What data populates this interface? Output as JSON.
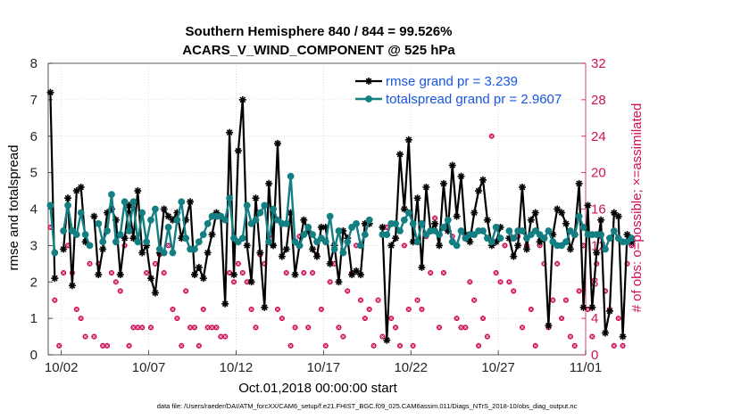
{
  "chart_data": {
    "type": "line",
    "title": "Southern Hemisphere 840 / 844 = 99.526%",
    "subtitle": "ACARS_V_WIND_COMPONENT @ 525 hPa",
    "xlabel": "Oct.01,2018 00:00:00 start",
    "ylabel_left": "rmse and totalspread",
    "ylabel_right": "# of obs: o=possible; ×=assimilated",
    "footnote": "data file: /Users/raeder/DAI/ATM_forcXX/CAM6_setup/f.e21.FHIST_BGC.f09_025.CAM6assim.011/Diags_NTrS_2018-10/obs_diag_output.nc",
    "xlim": [
      0.75,
      31.5
    ],
    "ylim_left": [
      0,
      8
    ],
    "ylim_right": [
      0,
      32
    ],
    "x_ticks": [
      1.5,
      6.5,
      11.5,
      16.5,
      21.5,
      26.5,
      31.5
    ],
    "x_tick_labels": [
      "10/02",
      "10/07",
      "10/12",
      "10/17",
      "10/22",
      "10/27",
      "11/01"
    ],
    "y_ticks_left": [
      0,
      1,
      2,
      3,
      4,
      5,
      6,
      7,
      8
    ],
    "y_ticks_right": [
      0,
      4,
      8,
      12,
      16,
      20,
      24,
      28,
      32
    ],
    "x_start": 0.875,
    "x_step": 0.25,
    "series": [
      {
        "name": "rmse grand pr = 3.239",
        "color": "#000000",
        "marker": "star",
        "values": [
          7.2,
          2.1,
          null,
          2.9,
          4.3,
          1.9,
          4.5,
          4.6,
          3.1,
          null,
          3.8,
          2.2,
          2.9,
          3.9,
          4.0,
          3.7,
          2.2,
          3.2,
          4.1,
          3.2,
          4.5,
          2.8,
          3.0,
          2.1,
          1.7,
          2.8,
          4.0,
          3.8,
          3.7,
          3.9,
          3.2,
          3.7,
          4.2,
          2.2,
          2.4,
          2.1,
          2.8,
          3.3,
          3.9,
          3.8,
          1.4,
          6.1,
          2.2,
          5.6,
          7.0,
          3.0,
          2.0,
          4.3,
          2.8,
          1.3,
          4.7,
          3.0,
          5.8,
          2.7,
          2.9,
          3.9,
          2.2,
          3.0,
          3.7,
          3.4,
          2.9,
          2.7,
          3.5,
          3.5,
          2.5,
          3.0,
          2.0,
          3.4,
          3.2,
          2.2,
          2.3,
          2.2,
          3.6,
          3.6,
          null,
          null,
          3.5,
          0.4,
          3.0,
          3.2,
          5.5,
          4.0,
          5.9,
          3.1,
          4.3,
          2.4,
          4.6,
          3.4,
          3.6,
          3.0,
          4.7,
          3.4,
          5.2,
          3.8,
          4.9,
          3.3,
          3.1,
          3.9,
          4.5,
          4.8,
          3.7,
          3.0,
          3.1,
          3.5,
          null,
          3.2,
          2.7,
          3.0,
          4.6,
          2.9,
          3.7,
          3.9,
          3.1,
          3.2,
          0.8,
          3.3,
          4.0,
          3.9,
          3.6,
          2.9,
          3.3,
          4.7,
          1.3,
          4.1,
          1.3,
          2.8,
          3.7,
          0.6,
          1.2,
          3.9,
          3.8,
          0.5,
          3.3,
          3.1
        ]
      },
      {
        "name": "totalspread grand pr = 2.9607",
        "color": "#137f83",
        "marker": "circle",
        "values": [
          4.1,
          2.8,
          null,
          3.4,
          4.1,
          3.4,
          3.3,
          3.9,
          3.3,
          3.0,
          null,
          3.6,
          3.1,
          3.4,
          4.4,
          3.1,
          3.3,
          4.2,
          3.4,
          4.2,
          3.1,
          3.9,
          3.1,
          3.7,
          4.0,
          2.9,
          2.8,
          3.5,
          2.8,
          3.7,
          4.2,
          3.2,
          2.9,
          2.9,
          3.1,
          3.3,
          3.6,
          3.8,
          3.8,
          3.8,
          3.7,
          4.3,
          3.2,
          3.1,
          3.2,
          4.1,
          3.6,
          3.7,
          3.9,
          4.1,
          3.1,
          4.0,
          3.7,
          3.6,
          3.6,
          4.9,
          3.1,
          3.0,
          3.3,
          3.5,
          3.3,
          3.1,
          3.2,
          3.1,
          3.8,
          2.9,
          3.4,
          2.8,
          3.1,
          3.5,
          3.6,
          3.0,
          3.3,
          3.7,
          null,
          null,
          3.3,
          3.3,
          3.6,
          3.6,
          3.4,
          3.7,
          3.9,
          3.6,
          3.1,
          3.6,
          3.3,
          3.4,
          3.4,
          3.3,
          3.5,
          3.7,
          3.1,
          3.0,
          3.4,
          3.2,
          3.3,
          3.3,
          3.4,
          3.4,
          3.2,
          3.1,
          3.5,
          3.2,
          null,
          3.4,
          3.2,
          3.4,
          3.4,
          3.2,
          3.3,
          3.4,
          3.3,
          3.2,
          3.4,
          3.1,
          3.0,
          3.0,
          3.1,
          3.4,
          3.3,
          3.8,
          3.5,
          3.3,
          3.3,
          3.3,
          3.3,
          2.9,
          3.2,
          3.4,
          3.2,
          3.1,
          3.1,
          3.2
        ]
      },
      {
        "name": "# of obs assimilated",
        "axis": "right",
        "color": "#d0105a",
        "marker": "x-circle",
        "values": [
          14,
          6,
          1,
          9,
          12,
          9,
          5,
          4,
          2,
          10,
          2,
          10,
          1,
          1,
          9,
          8,
          7,
          12,
          1,
          3,
          3,
          3,
          9,
          3,
          10,
          11,
          9,
          12,
          5,
          4,
          1,
          7,
          3,
          3,
          1,
          5,
          3,
          3,
          3,
          2,
          2,
          9,
          8,
          10,
          9,
          8,
          5,
          3,
          11,
          10,
          13,
          12,
          5,
          4,
          9,
          1,
          3,
          13,
          9,
          3,
          9,
          11,
          5,
          1,
          8,
          10,
          3,
          2,
          7,
          9,
          12,
          6,
          4,
          5,
          1,
          6,
          2,
          14,
          4,
          3,
          1,
          12,
          5,
          1,
          6,
          5,
          13,
          9,
          15,
          3,
          9,
          14,
          13,
          4,
          3,
          3,
          8,
          6,
          1,
          4,
          2,
          24,
          9,
          8,
          12,
          8,
          7,
          13,
          3,
          12,
          5,
          1,
          12,
          10,
          3,
          6,
          10,
          4,
          6,
          2,
          1,
          7,
          12,
          5,
          2,
          10,
          13,
          7,
          5,
          1,
          4,
          1,
          10,
          12
        ]
      },
      {
        "name": "# of obs possible",
        "axis": "right",
        "color": "#d0105a",
        "marker": "open-circle",
        "values": [
          14,
          6,
          1,
          9,
          12,
          9,
          5,
          4,
          2,
          10,
          2,
          10,
          1,
          1,
          9,
          8,
          7,
          12,
          1,
          3,
          3,
          3,
          9,
          3,
          10,
          11,
          9,
          12,
          5,
          4,
          1,
          7,
          3,
          3,
          1,
          5,
          3,
          3,
          3,
          2,
          2,
          9,
          8,
          10,
          9,
          8,
          5,
          3,
          11,
          10,
          13,
          12,
          5,
          4,
          9,
          1,
          3,
          13,
          9,
          3,
          9,
          11,
          5,
          1,
          8,
          10,
          3,
          2,
          7,
          9,
          12,
          6,
          4,
          5,
          1,
          6,
          2,
          14,
          4,
          3,
          1,
          12,
          5,
          1,
          6,
          5,
          13,
          9,
          15,
          3,
          9,
          14,
          13,
          4,
          3,
          3,
          8,
          6,
          1,
          4,
          2,
          24,
          9,
          8,
          12,
          8,
          7,
          13,
          3,
          12,
          5,
          1,
          12,
          10,
          3,
          6,
          10,
          4,
          6,
          2,
          1,
          7,
          12,
          5,
          2,
          10,
          13,
          7,
          5,
          1,
          4,
          1,
          10,
          12
        ]
      }
    ]
  }
}
